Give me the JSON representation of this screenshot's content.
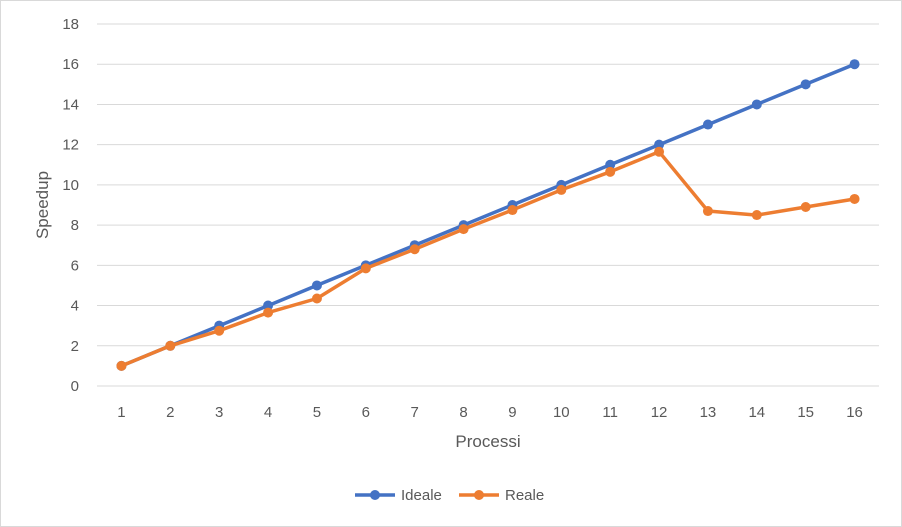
{
  "chart_data": {
    "type": "line",
    "title": "",
    "xlabel": "Processi",
    "ylabel": "Speedup",
    "categories": [
      "1",
      "2",
      "3",
      "4",
      "5",
      "6",
      "7",
      "8",
      "9",
      "10",
      "11",
      "12",
      "13",
      "14",
      "15",
      "16"
    ],
    "ylim": [
      0,
      18
    ],
    "yticks": [
      0,
      2,
      4,
      6,
      8,
      10,
      12,
      14,
      16,
      18
    ],
    "grid": true,
    "legend_position": "bottom",
    "series": [
      {
        "name": "Ideale",
        "color": "#4472c4",
        "values": [
          1,
          2,
          3,
          4,
          5,
          6,
          7,
          8,
          9,
          10,
          11,
          12,
          13,
          14,
          15,
          16
        ]
      },
      {
        "name": "Reale",
        "color": "#ed7d31",
        "values": [
          1,
          2,
          2.75,
          3.65,
          4.35,
          5.85,
          6.8,
          7.8,
          8.75,
          9.75,
          10.65,
          11.65,
          8.7,
          8.5,
          8.9,
          9.3
        ]
      }
    ]
  }
}
